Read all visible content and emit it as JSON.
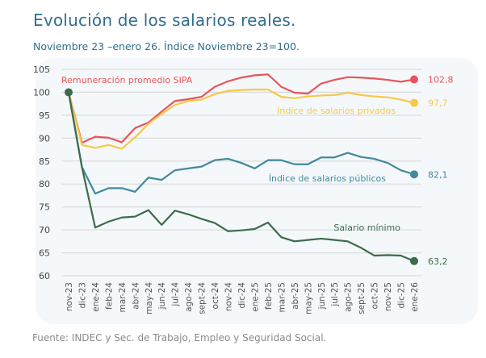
{
  "header": {
    "title": "Evolución de los salarios reales.",
    "subtitle": "Noviembre 23 –enero 26. Índice Noviembre 23=100."
  },
  "footer": {
    "source": "Fuente: INDEC y Sec. de Trabajo, Empleo y Seguridad Social."
  },
  "chart_data": {
    "type": "line",
    "title": "",
    "xlabel": "",
    "ylabel": "",
    "ylim": [
      60,
      105
    ],
    "yticks": [
      "60",
      "65",
      "70",
      "75",
      "80",
      "85",
      "90",
      "95",
      "100",
      "105"
    ],
    "grid": "horizontal",
    "categories": [
      "nov-23",
      "dic-23",
      "ene-24",
      "feb-24",
      "mar-24",
      "abr-24",
      "may-24",
      "jun-24",
      "jul-24",
      "ago-24",
      "sept-24",
      "oct-24",
      "nov-24",
      "dic-24",
      "ene-25",
      "feb-25",
      "mar-25",
      "abr-25",
      "may-25",
      "jun-25",
      "jul-25",
      "ago-25",
      "sept-25",
      "oct-25",
      "nov-25",
      "dic-25",
      "ene-26"
    ],
    "series": [
      {
        "name": "Remuneración promedio SIPA",
        "color": "#e8545a",
        "end_label": "102,8",
        "values": [
          100,
          89.0,
          90.3,
          90.1,
          89.1,
          92.2,
          93.4,
          95.8,
          98.1,
          98.5,
          99.0,
          101.2,
          102.4,
          103.2,
          103.7,
          103.9,
          101.2,
          99.9,
          99.7,
          101.9,
          102.7,
          103.3,
          103.2,
          103.0,
          102.7,
          102.3,
          102.8
        ]
      },
      {
        "name": "Índice de salarios privados",
        "color": "#f7c948",
        "end_label": "97,7",
        "values": [
          100,
          88.5,
          87.9,
          88.5,
          87.7,
          90.2,
          93.1,
          95.3,
          97.2,
          98.1,
          98.4,
          99.6,
          100.3,
          100.5,
          100.6,
          100.6,
          99.0,
          98.7,
          99.1,
          99.3,
          99.4,
          99.9,
          99.4,
          99.1,
          98.9,
          98.4,
          97.7
        ]
      },
      {
        "name": "Índice de salarios públicos",
        "color": "#3f8a9e",
        "end_label": "82,1",
        "values": [
          100,
          83.7,
          77.9,
          79.1,
          79.1,
          78.3,
          81.4,
          80.9,
          83.0,
          83.4,
          83.8,
          85.2,
          85.5,
          84.6,
          83.4,
          85.2,
          85.2,
          84.3,
          84.3,
          85.8,
          85.8,
          86.8,
          85.9,
          85.5,
          84.6,
          83.0,
          82.1
        ]
      },
      {
        "name": "Salario mínimo",
        "color": "#3d6b4c",
        "end_label": "63,2",
        "values": [
          100,
          83.7,
          70.5,
          71.8,
          72.7,
          72.9,
          74.3,
          71.1,
          74.2,
          73.4,
          72.4,
          71.5,
          69.7,
          69.9,
          70.2,
          71.6,
          68.4,
          67.5,
          67.8,
          68.1,
          67.8,
          67.5,
          66.1,
          64.4,
          64.5,
          64.4,
          63.2
        ]
      }
    ]
  }
}
